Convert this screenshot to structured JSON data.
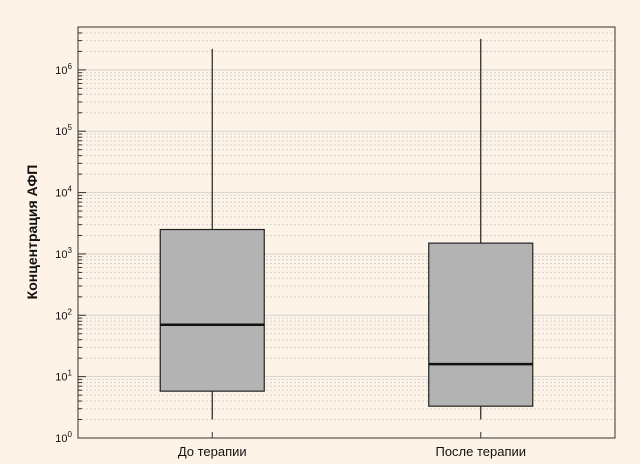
{
  "chart_data": {
    "type": "boxplot",
    "title": "",
    "xlabel": "",
    "ylabel": "Концентрация АФП",
    "yscale": "log",
    "ylim": [
      1,
      5000000
    ],
    "y_ticks": [
      {
        "value": 1,
        "base": "10",
        "exp": "0"
      },
      {
        "value": 10,
        "base": "10",
        "exp": "1"
      },
      {
        "value": 100,
        "base": "10",
        "exp": "2"
      },
      {
        "value": 1000,
        "base": "10",
        "exp": "3"
      },
      {
        "value": 10000,
        "base": "10",
        "exp": "4"
      },
      {
        "value": 100000,
        "base": "10",
        "exp": "5"
      },
      {
        "value": 1000000,
        "base": "10",
        "exp": "6"
      }
    ],
    "categories": [
      "До терапии",
      "После терапии"
    ],
    "boxes": [
      {
        "category": "До терапии",
        "min": 2,
        "q1": 5.8,
        "median": 70,
        "q3": 2500,
        "max": 2200000
      },
      {
        "category": "После терапии",
        "min": 2,
        "q1": 3.3,
        "median": 16,
        "q3": 1500,
        "max": 3200000
      }
    ],
    "grid": true,
    "colors": {
      "background": "#fdf3e6",
      "box_fill": "#b3b3b3",
      "gridline": "#d3d3d3",
      "axis": "#333333"
    }
  }
}
